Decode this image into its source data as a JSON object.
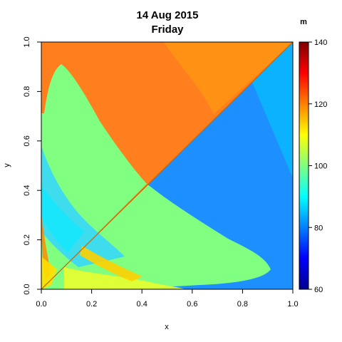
{
  "chart_data": {
    "type": "heatmap",
    "title": "14 Aug 2015",
    "subtitle": "Friday",
    "xlabel": "x",
    "ylabel": "y",
    "xlim": [
      0,
      1
    ],
    "ylim": [
      0,
      1
    ],
    "x_ticks": [
      "0.0",
      "0.2",
      "0.4",
      "0.6",
      "0.8",
      "1.0"
    ],
    "y_ticks": [
      "0.0",
      "0.2",
      "0.4",
      "0.6",
      "0.8",
      "1.0"
    ],
    "colorbar": {
      "unit": "m",
      "range": [
        60,
        140
      ],
      "ticks": [
        "60",
        "80",
        "100",
        "120",
        "140"
      ],
      "palette": [
        "#00008F",
        "#0000FF",
        "#0080FF",
        "#00FFFF",
        "#80FF80",
        "#FFFF00",
        "#FF8000",
        "#FF0000",
        "#800000"
      ]
    },
    "regions": [
      {
        "name": "upper-left triangle",
        "value": 122,
        "color": "#FF7F1E"
      },
      {
        "name": "lower-right triangle",
        "value": 82,
        "color": "#1E8FFF"
      },
      {
        "name": "central lobe",
        "value": 100,
        "color": "#80FF80"
      },
      {
        "name": "lower-left band",
        "value": 90,
        "color": "#33D6FF"
      },
      {
        "name": "near-axis hot spot",
        "value": 108,
        "color": "#E8FF30"
      }
    ],
    "diagonal": {
      "from": [
        0,
        0
      ],
      "to": [
        1,
        1
      ],
      "color": "#C86400"
    }
  }
}
